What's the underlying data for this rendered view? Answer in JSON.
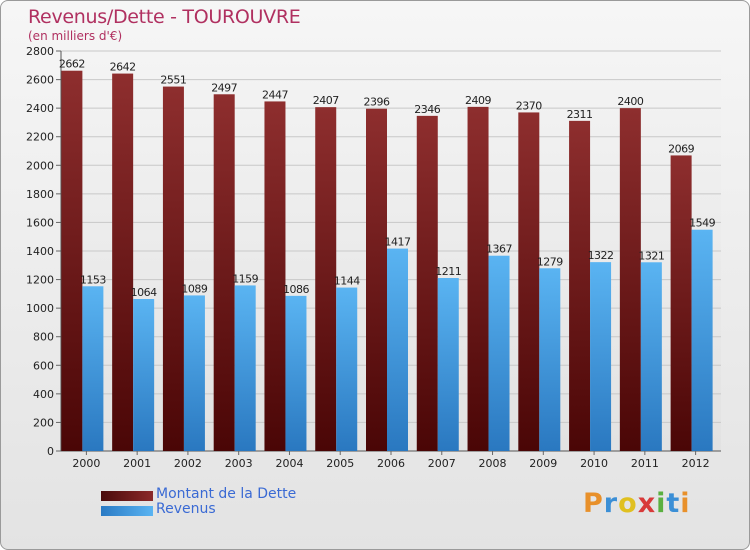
{
  "chart_data": {
    "type": "bar",
    "title": "Revenus/Dette - TOUROUVRE",
    "subtitle": "(en milliers d'€)",
    "categories": [
      "2000",
      "2001",
      "2002",
      "2003",
      "2004",
      "2005",
      "2006",
      "2007",
      "2008",
      "2009",
      "2010",
      "2011",
      "2012"
    ],
    "series": [
      {
        "name": "Montant de la Dette",
        "color": "#7a1a1a",
        "values": [
          2662,
          2642,
          2551,
          2497,
          2447,
          2407,
          2396,
          2346,
          2409,
          2370,
          2311,
          2400,
          2069
        ]
      },
      {
        "name": "Revenus",
        "color": "#4aa3ea",
        "values": [
          1153,
          1064,
          1089,
          1159,
          1086,
          1144,
          1417,
          1211,
          1367,
          1279,
          1322,
          1321,
          1549
        ]
      }
    ],
    "ylim": [
      0,
      2800
    ],
    "yticks": [
      0,
      200,
      400,
      600,
      800,
      1000,
      1200,
      1400,
      1600,
      1800,
      2000,
      2200,
      2400,
      2600,
      2800
    ],
    "grid": true,
    "legend_position": "bottom-left"
  },
  "logo": {
    "letters": [
      "P",
      "r",
      "o",
      "x",
      "i",
      "t",
      "i"
    ],
    "colors": [
      "#e8902a",
      "#3b8fd6",
      "#e0c020",
      "#d83a3a",
      "#5ab040",
      "#3b8fd6",
      "#e8902a"
    ]
  }
}
